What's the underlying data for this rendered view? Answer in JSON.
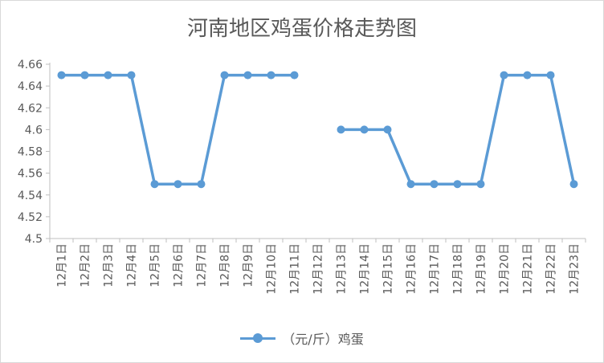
{
  "chart_data": {
    "type": "line",
    "title": "河南地区鸡蛋价格走势图",
    "categories": [
      "12月1日",
      "12月2日",
      "12月3日",
      "12月4日",
      "12月5日",
      "12月6日",
      "12月7日",
      "12月8日",
      "12月9日",
      "12月10日",
      "12月11日",
      "12月12日",
      "12月13日",
      "12月14日",
      "12月15日",
      "12月16日",
      "12月17日",
      "12月18日",
      "12月19日",
      "12月20日",
      "12月21日",
      "12月22日",
      "12月23日"
    ],
    "series": [
      {
        "name": "（元/斤）鸡蛋",
        "values": [
          4.65,
          4.65,
          4.65,
          4.65,
          4.55,
          4.55,
          4.55,
          4.65,
          4.65,
          4.65,
          4.65,
          null,
          4.6,
          4.6,
          4.6,
          4.55,
          4.55,
          4.55,
          4.55,
          4.65,
          4.65,
          4.65,
          4.55
        ]
      }
    ],
    "ylim": [
      4.5,
      4.66
    ],
    "yticks": [
      "4.5",
      "4.52",
      "4.54",
      "4.56",
      "4.58",
      "4.6",
      "4.62",
      "4.64",
      "4.66"
    ],
    "xlabel": "",
    "ylabel": "",
    "grid": false,
    "legend": "bottom",
    "color": "#5b9bd5"
  }
}
